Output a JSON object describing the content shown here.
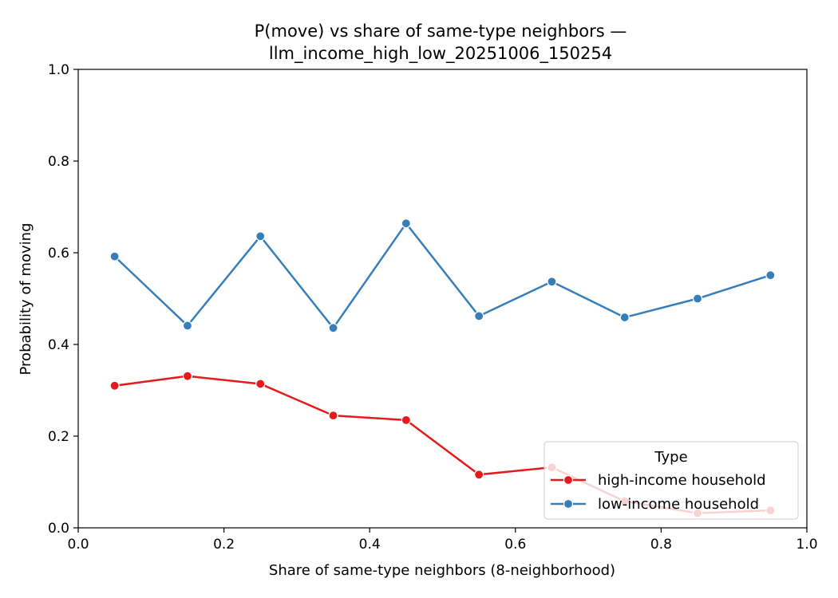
{
  "chart_data": {
    "type": "line",
    "title_lines": [
      "P(move) vs share of same-type neighbors —",
      "llm_income_high_low_20251006_150254"
    ],
    "xlabel": "Share of same-type neighbors (8-neighborhood)",
    "ylabel": "Probability of moving",
    "xlim": [
      0.0,
      1.0
    ],
    "ylim": [
      0.0,
      1.0
    ],
    "xticks": [
      "0.0",
      "0.2",
      "0.4",
      "0.6",
      "0.8",
      "1.0"
    ],
    "yticks": [
      "0.0",
      "0.2",
      "0.4",
      "0.6",
      "0.8",
      "1.0"
    ],
    "grid": false,
    "legend": {
      "title": "Type",
      "placement": "lower-right"
    },
    "x": [
      0.05,
      0.15,
      0.25,
      0.35,
      0.45,
      0.55,
      0.65,
      0.75,
      0.85,
      0.95
    ],
    "series": [
      {
        "name": "high-income household",
        "color": "#e41a1c",
        "values": [
          0.31,
          0.331,
          0.314,
          0.245,
          0.235,
          0.116,
          0.132,
          0.058,
          0.032,
          0.038
        ]
      },
      {
        "name": "low-income household",
        "color": "#377eb8",
        "values": [
          0.592,
          0.441,
          0.636,
          0.436,
          0.664,
          0.462,
          0.537,
          0.459,
          0.5,
          0.551
        ]
      }
    ]
  }
}
